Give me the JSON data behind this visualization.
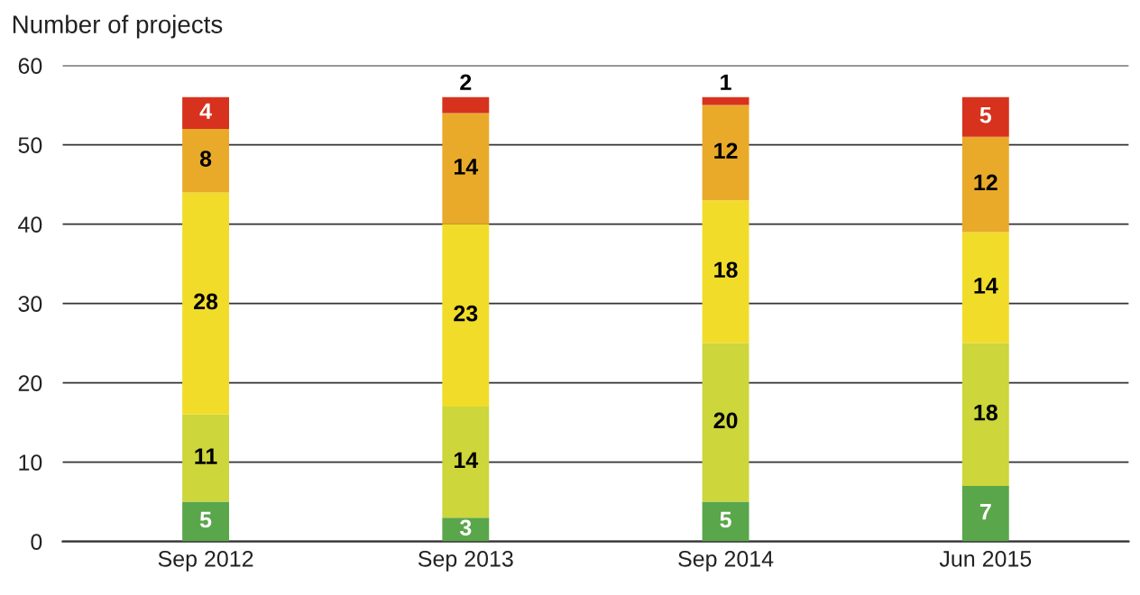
{
  "chart_data": {
    "type": "bar",
    "stacked": true,
    "ylabel": "Number of projects",
    "categories": [
      "Sep 2012",
      "Sep 2013",
      "Sep 2014",
      "Jun 2015"
    ],
    "series": [
      {
        "color": "#5aa64a",
        "values": [
          5,
          3,
          5,
          7
        ]
      },
      {
        "color": "#cdd63a",
        "values": [
          11,
          14,
          20,
          18
        ]
      },
      {
        "color": "#f2dc2a",
        "values": [
          28,
          23,
          18,
          14
        ]
      },
      {
        "color": "#e9aa2a",
        "values": [
          8,
          14,
          12,
          12
        ]
      },
      {
        "color": "#d7321e",
        "values": [
          4,
          2,
          1,
          5
        ]
      }
    ],
    "ylim": [
      0,
      60
    ],
    "yticks": [
      0,
      10,
      20,
      30,
      40,
      50,
      60
    ],
    "grid": "y",
    "data_labels": true,
    "legend": false
  }
}
